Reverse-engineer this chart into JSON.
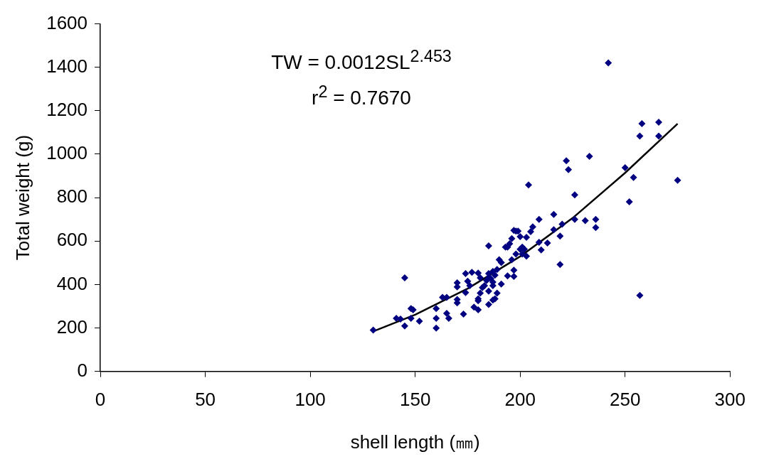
{
  "chart_data": {
    "type": "scatter",
    "xlabel": "shell length (㎜)",
    "ylabel": "Total weight (g)",
    "xlim": [
      0,
      300
    ],
    "xticks": [
      0,
      50,
      100,
      150,
      200,
      250,
      300
    ],
    "ylim": [
      0,
      1600
    ],
    "yticks": [
      0,
      200,
      400,
      600,
      800,
      1000,
      1200,
      1400,
      1600
    ],
    "grid": false,
    "legend": false,
    "marker": "diamond",
    "annotations": [
      "TW = 0.0012SL$^{2.453}$",
      "r$^{2}$ = 0.7670"
    ],
    "series": [
      {
        "color": "#000080",
        "x": [
          130,
          141,
          143,
          145,
          145,
          148,
          149,
          148,
          152,
          160,
          160,
          160,
          163,
          165,
          165,
          166,
          170,
          170,
          170,
          170,
          173,
          174,
          174,
          175,
          176,
          177,
          178,
          180,
          180,
          180,
          180,
          181,
          181,
          183,
          184,
          185,
          185,
          185,
          185,
          185,
          186,
          187,
          187,
          187,
          188,
          189,
          188,
          189,
          191,
          190,
          191,
          194,
          195,
          196,
          196,
          197,
          198,
          198,
          197,
          197,
          199,
          200,
          200,
          201,
          201,
          202,
          203,
          204,
          205,
          206,
          209,
          209,
          210,
          213,
          216,
          216,
          219,
          220,
          219,
          222,
          223,
          226,
          226,
          231,
          233,
          236,
          236,
          242,
          250,
          252,
          254,
          257,
          257,
          258,
          266,
          266,
          275,
          193,
          203,
          194,
          182,
          187
        ],
        "values": [
          190,
          244,
          241,
          209,
          431,
          289,
          283,
          244,
          231,
          289,
          199,
          244,
          341,
          341,
          267,
          244,
          331,
          315,
          408,
          389,
          264,
          363,
          450,
          415,
          395,
          456,
          296,
          325,
          283,
          453,
          334,
          431,
          360,
          395,
          418,
          308,
          450,
          369,
          578,
          431,
          427,
          460,
          395,
          411,
          443,
          469,
          334,
          360,
          402,
          514,
          501,
          572,
          588,
          611,
          514,
          649,
          646,
          540,
          437,
          466,
          646,
          620,
          562,
          572,
          540,
          562,
          617,
          858,
          643,
          665,
          700,
          594,
          559,
          591,
          723,
          652,
          623,
          678,
          492,
          970,
          929,
          813,
          700,
          694,
          990,
          700,
          662,
          1420,
          938,
          781,
          893,
          350,
          1083,
          1141,
          1147,
          1083,
          880,
          572,
          530,
          440,
          386,
          328
        ]
      },
      {
        "type": "line",
        "color": "#000000",
        "marker": "none",
        "x": [
          130,
          150,
          175,
          200,
          225,
          250,
          275
        ],
        "values": [
          184,
          261,
          381,
          529,
          706,
          914,
          1140
        ]
      }
    ]
  }
}
